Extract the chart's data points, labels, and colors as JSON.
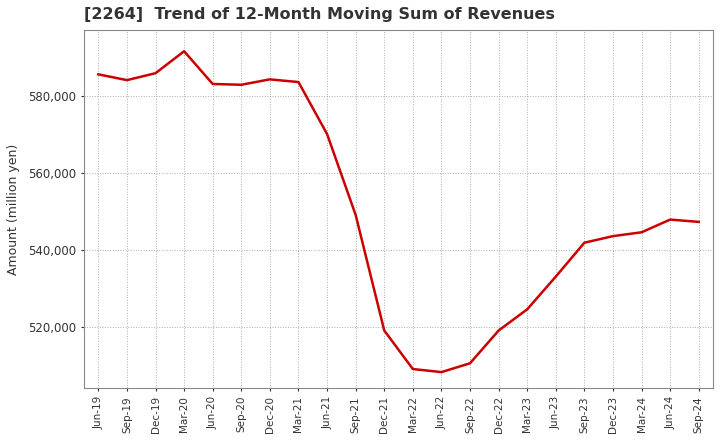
{
  "title": "[2264]  Trend of 12-Month Moving Sum of Revenues",
  "ylabel": "Amount (million yen)",
  "line_color": "#cc0000",
  "background_color": "#ffffff",
  "plot_bg_color": "#ffffff",
  "grid_color": "#999999",
  "title_color": "#333333",
  "x_labels": [
    "Jun-19",
    "Sep-19",
    "Dec-19",
    "Mar-20",
    "Jun-20",
    "Sep-20",
    "Dec-20",
    "Mar-21",
    "Jun-21",
    "Sep-21",
    "Dec-21",
    "Mar-22",
    "Jun-22",
    "Sep-22",
    "Dec-22",
    "Mar-23",
    "Jun-23",
    "Sep-23",
    "Dec-23",
    "Mar-24",
    "Jun-24",
    "Sep-24"
  ],
  "values": [
    585500,
    584000,
    585800,
    591500,
    583000,
    582800,
    584200,
    583500,
    570000,
    549000,
    519000,
    509000,
    508200,
    510500,
    519000,
    524500,
    533000,
    541800,
    543500,
    544500,
    547800,
    547200
  ],
  "ylim": [
    504000,
    597000
  ],
  "yticks": [
    520000,
    540000,
    560000,
    580000
  ],
  "linewidth": 1.8,
  "title_fontsize": 11.5,
  "ylabel_fontsize": 9,
  "tick_fontsize": 8.5,
  "xtick_fontsize": 7.5
}
